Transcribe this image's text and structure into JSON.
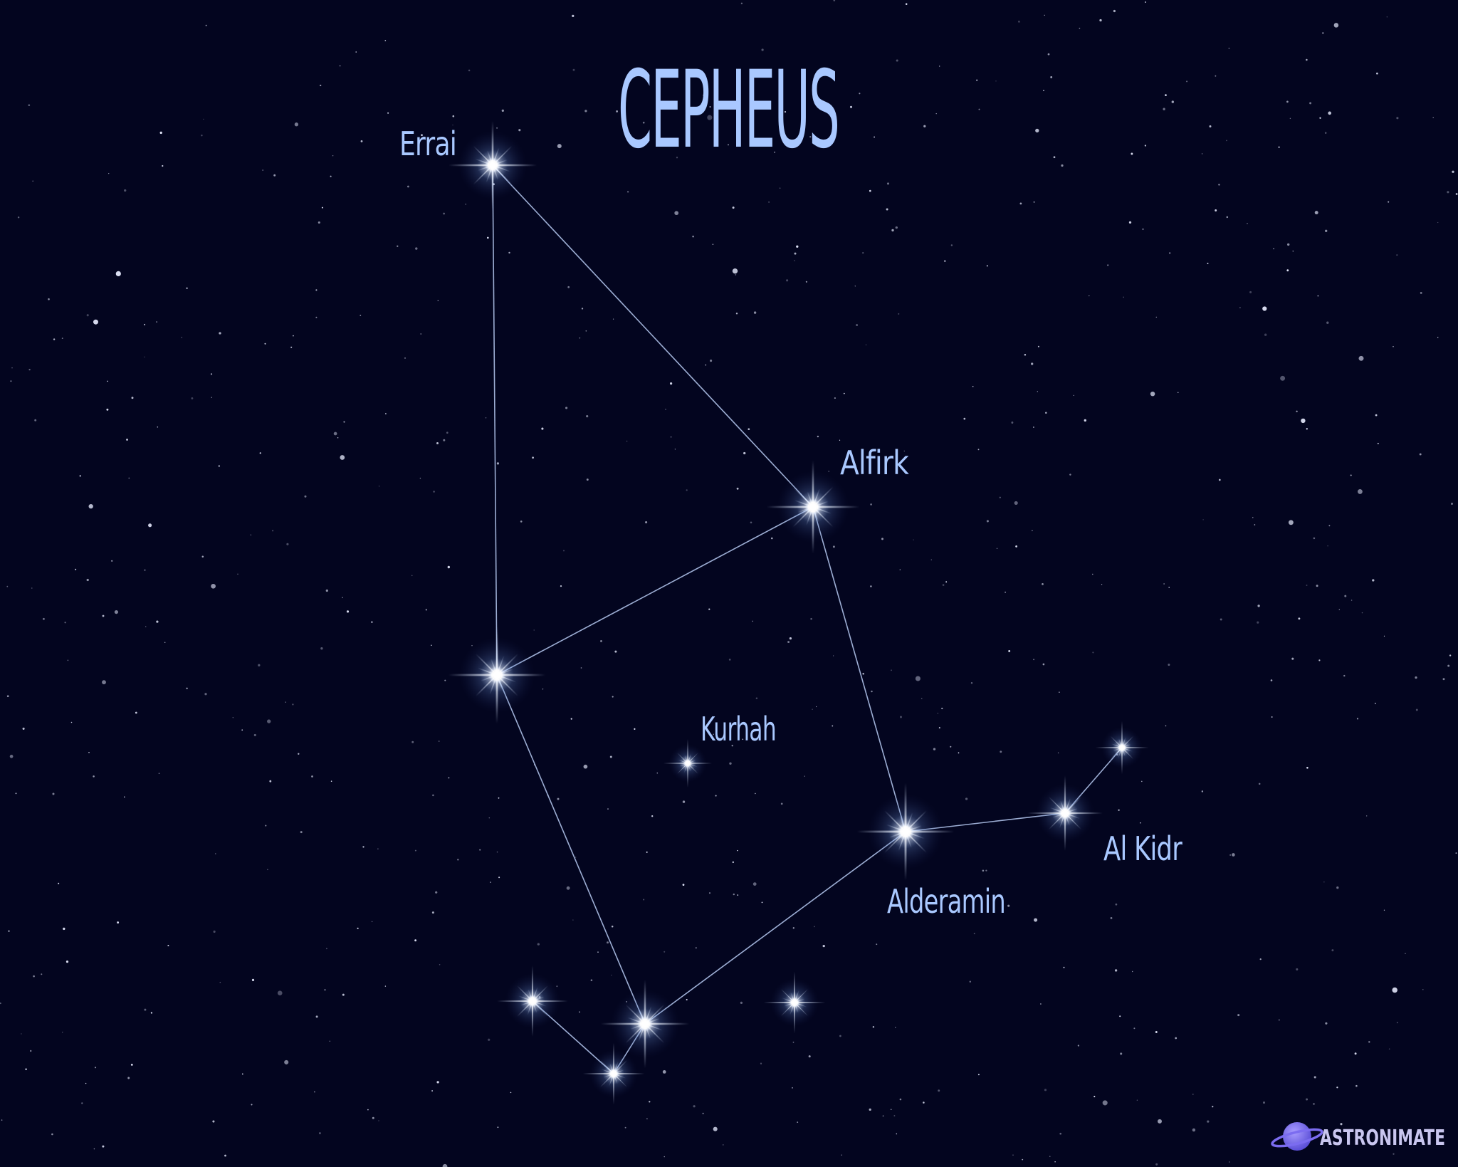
{
  "title": "CEPHEUS",
  "labels": {
    "errai": "Errai",
    "alfirk": "Alfirk",
    "kurhah": "Kurhah",
    "alderamin": "Alderamin",
    "al_kidr": "Al Kidr"
  },
  "branding": {
    "logo_text": "ASTRONIMATE",
    "logo_icon": "planet-icon"
  },
  "colors": {
    "background": "#03051f",
    "text": "#a9c8ff",
    "lines": "#b9cdf5",
    "logo_planet": "#7b6cf0"
  }
}
